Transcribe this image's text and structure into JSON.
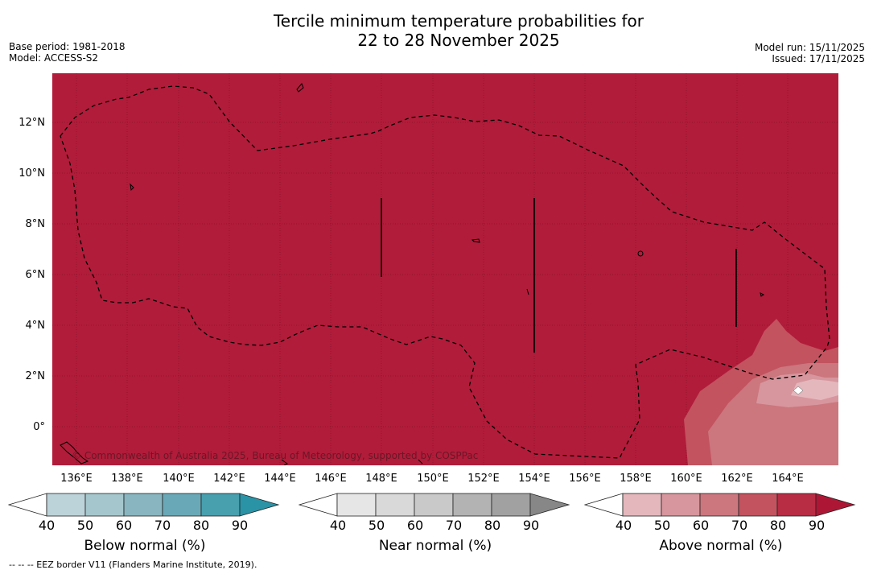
{
  "title": {
    "line1": "Tercile minimum temperature probabilities for",
    "line2": "22 to 28 November 2025"
  },
  "meta": {
    "base_period": "Base period: 1981-2018",
    "model": "Model: ACCESS-S2",
    "model_run": "Model run: 15/11/2025",
    "issued": "Issued: 17/11/2025"
  },
  "map": {
    "lat_labels": [
      "12°N",
      "10°N",
      "8°N",
      "6°N",
      "4°N",
      "2°N",
      "0°"
    ],
    "lon_labels": [
      "136°E",
      "138°E",
      "140°E",
      "142°E",
      "144°E",
      "146°E",
      "148°E",
      "150°E",
      "152°E",
      "154°E",
      "156°E",
      "158°E",
      "160°E",
      "162°E",
      "164°E"
    ],
    "copyright": "© Commonwealth of Australia 2025, Bureau of Meteorology, supported by COSPPac",
    "background_color": "#b11c3a"
  },
  "colorbars": [
    {
      "title": "Below normal (%)",
      "ticks": [
        "40",
        "50",
        "60",
        "70",
        "80",
        "90"
      ],
      "colors": [
        "#ffffff",
        "#bdd3da",
        "#a5c6cd",
        "#88b5c0",
        "#69a9b7",
        "#489fae",
        "#2a93a6"
      ]
    },
    {
      "title": "Near normal (%)",
      "ticks": [
        "40",
        "50",
        "60",
        "70",
        "80",
        "90"
      ],
      "colors": [
        "#ffffff",
        "#e6e6e6",
        "#d9d9d9",
        "#c9c9c9",
        "#b3b3b3",
        "#a1a1a1",
        "#878787"
      ]
    },
    {
      "title": "Above normal (%)",
      "ticks": [
        "40",
        "50",
        "60",
        "70",
        "80",
        "90"
      ],
      "colors": [
        "#ffffff",
        "#e4b7bd",
        "#d7969d",
        "#cc767e",
        "#c2535f",
        "#b82d44",
        "#ad1735"
      ]
    }
  ],
  "footnote": "--  --  -- EEZ border V11 (Flanders Marine Institute, 2019)."
}
